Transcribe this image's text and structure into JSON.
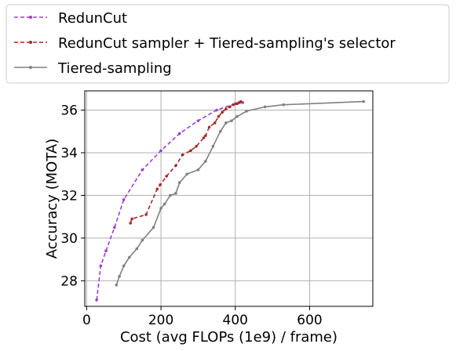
{
  "chart_data": {
    "type": "line",
    "xlabel": "Cost (avg FLOPs (1e9) / frame)",
    "ylabel": "Accuracy (MOTA)",
    "xlim": [
      -5,
      770
    ],
    "ylim": [
      26.8,
      36.9
    ],
    "xticks": [
      0,
      200,
      400,
      600
    ],
    "yticks": [
      28,
      30,
      32,
      34,
      36
    ],
    "grid": true,
    "legend_position": "top",
    "series": [
      {
        "name": "RedunCut",
        "color": "#9b3fd6",
        "style": "dashed",
        "x": [
          27,
          38,
          52,
          75,
          100,
          150,
          200,
          250,
          300,
          350,
          400,
          420
        ],
        "y": [
          27.1,
          28.7,
          29.4,
          30.5,
          31.8,
          33.2,
          34.1,
          34.9,
          35.5,
          36.0,
          36.3,
          36.35
        ]
      },
      {
        "name": "RedunCut sampler + Tiered-sampling's selector",
        "color": "#a52a2a",
        "style": "dashed",
        "x": [
          118,
          122,
          160,
          190,
          198,
          215,
          240,
          258,
          280,
          295,
          315,
          320,
          330,
          345,
          355,
          365,
          375,
          385,
          395,
          405,
          410,
          415
        ],
        "y": [
          30.7,
          30.9,
          31.1,
          32.3,
          32.5,
          32.9,
          33.4,
          33.9,
          34.1,
          34.3,
          34.7,
          34.8,
          35.2,
          35.4,
          35.7,
          35.9,
          36.05,
          36.15,
          36.25,
          36.3,
          36.35,
          36.4
        ]
      },
      {
        "name": "Tiered-sampling",
        "color": "#808080",
        "style": "solid",
        "x": [
          80,
          88,
          100,
          115,
          135,
          150,
          180,
          200,
          210,
          225,
          240,
          250,
          270,
          300,
          320,
          340,
          360,
          375,
          390,
          405,
          430,
          480,
          530,
          745
        ],
        "y": [
          27.8,
          28.2,
          28.7,
          29.1,
          29.5,
          29.9,
          30.5,
          31.4,
          31.6,
          32.0,
          32.1,
          32.6,
          33.0,
          33.2,
          33.6,
          34.3,
          35.0,
          35.4,
          35.5,
          35.7,
          35.95,
          36.15,
          36.25,
          36.4
        ]
      }
    ]
  }
}
